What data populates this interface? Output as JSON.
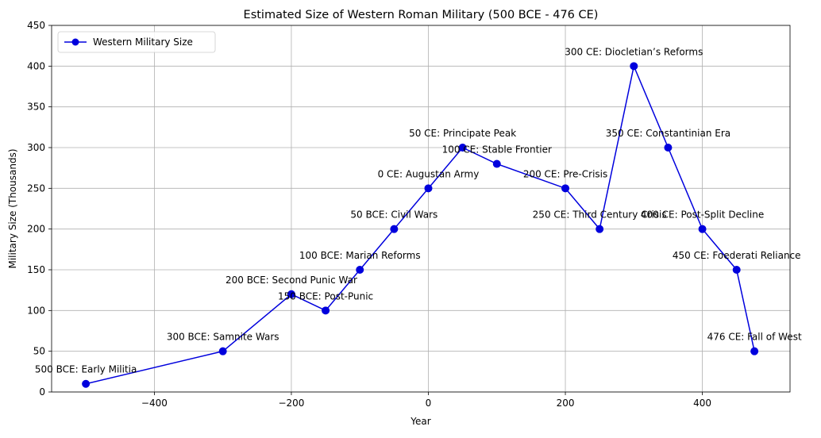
{
  "chart_data": {
    "type": "line",
    "title": "Estimated Size of Western Roman Military (500 BCE - 476 CE)",
    "xlabel": "Year",
    "ylabel": "Military Size (Thousands)",
    "xlim": [
      -550,
      528
    ],
    "ylim": [
      0,
      450
    ],
    "xticks": [
      -400,
      -200,
      0,
      200,
      400
    ],
    "xtick_labels": [
      "−400",
      "−200",
      "0",
      "200",
      "400"
    ],
    "yticks": [
      0,
      50,
      100,
      150,
      200,
      250,
      300,
      350,
      400,
      450
    ],
    "ytick_labels": [
      "0",
      "50",
      "100",
      "150",
      "200",
      "250",
      "300",
      "350",
      "400",
      "450"
    ],
    "grid": true,
    "legend_position": "upper-left",
    "series": [
      {
        "name": "Western Military Size",
        "color": "#0000dd",
        "marker": "circle",
        "x": [
          -500,
          -300,
          -200,
          -150,
          -100,
          -50,
          0,
          50,
          100,
          200,
          250,
          300,
          350,
          400,
          450,
          476
        ],
        "y": [
          10,
          50,
          120,
          100,
          150,
          200,
          250,
          300,
          280,
          250,
          200,
          400,
          300,
          200,
          150,
          50
        ]
      }
    ],
    "annotations": [
      {
        "text": "500 BCE: Early Militia",
        "x": -500,
        "y": 10
      },
      {
        "text": "300 BCE: Samnite Wars",
        "x": -300,
        "y": 50
      },
      {
        "text": "200 BCE: Second Punic War",
        "x": -200,
        "y": 120
      },
      {
        "text": "150 BCE: Post-Punic",
        "x": -150,
        "y": 100
      },
      {
        "text": "100 BCE: Marian Reforms",
        "x": -100,
        "y": 150
      },
      {
        "text": "50 BCE: Civil Wars",
        "x": -50,
        "y": 200
      },
      {
        "text": "0 CE: Augustan Army",
        "x": 0,
        "y": 250
      },
      {
        "text": "50 CE: Principate Peak",
        "x": 50,
        "y": 300
      },
      {
        "text": "100 CE: Stable Frontier",
        "x": 100,
        "y": 280
      },
      {
        "text": "200 CE: Pre-Crisis",
        "x": 200,
        "y": 250
      },
      {
        "text": "250 CE: Third Century Crisis",
        "x": 250,
        "y": 200
      },
      {
        "text": "300 CE: Diocletian’s Reforms",
        "x": 300,
        "y": 400
      },
      {
        "text": "350 CE: Constantinian Era",
        "x": 350,
        "y": 300
      },
      {
        "text": "400 CE: Post-Split Decline",
        "x": 400,
        "y": 200
      },
      {
        "text": "450 CE: Foederati Reliance",
        "x": 450,
        "y": 150
      },
      {
        "text": "476 CE: Fall of West",
        "x": 476,
        "y": 50
      }
    ]
  }
}
